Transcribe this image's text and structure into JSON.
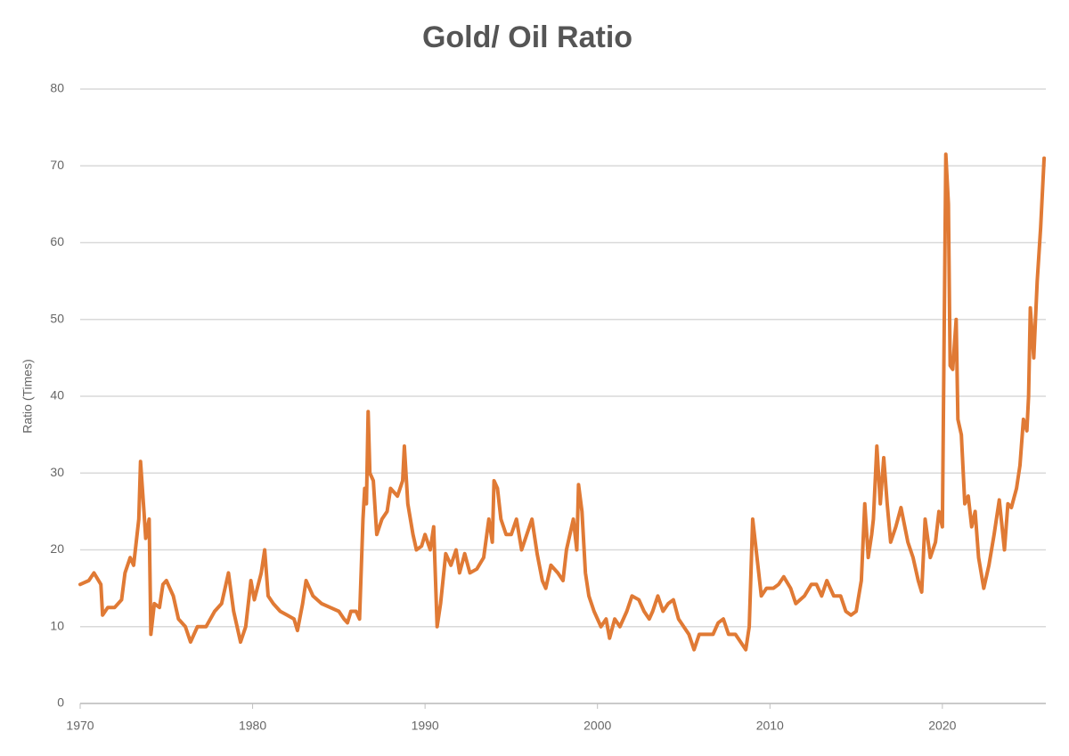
{
  "chart_data": {
    "type": "line",
    "title": "Gold/ Oil Ratio",
    "ylabel": "Ratio (Times)",
    "x": [
      1970,
      1970.5,
      1970.8,
      1971.2,
      1971.3,
      1971.6,
      1972,
      1972.4,
      1972.6,
      1972.9,
      1973.1,
      1973.4,
      1973.5,
      1973.7,
      1973.8,
      1974.0,
      1974.1,
      1974.3,
      1974.6,
      1974.8,
      1975.0,
      1975.4,
      1975.7,
      1976.1,
      1976.4,
      1976.8,
      1977.3,
      1977.8,
      1978.2,
      1978.6,
      1978.9,
      1979.3,
      1979.6,
      1979.9,
      1980.1,
      1980.5,
      1980.7,
      1980.9,
      1981.2,
      1981.6,
      1982.0,
      1982.4,
      1982.6,
      1982.9,
      1983.1,
      1983.5,
      1984.0,
      1984.5,
      1985.0,
      1985.3,
      1985.5,
      1985.7,
      1986.0,
      1986.2,
      1986.4,
      1986.5,
      1986.6,
      1986.7,
      1986.8,
      1987.0,
      1987.2,
      1987.5,
      1987.8,
      1988.0,
      1988.4,
      1988.7,
      1988.8,
      1989.0,
      1989.3,
      1989.5,
      1989.8,
      1990.0,
      1990.3,
      1990.5,
      1990.7,
      1990.9,
      1991.2,
      1991.5,
      1991.8,
      1992.0,
      1992.3,
      1992.6,
      1993.0,
      1993.4,
      1993.7,
      1993.9,
      1994.0,
      1994.2,
      1994.4,
      1994.7,
      1995.0,
      1995.3,
      1995.6,
      1995.9,
      1996.2,
      1996.5,
      1996.8,
      1997.0,
      1997.3,
      1997.7,
      1998.0,
      1998.2,
      1998.4,
      1998.6,
      1998.8,
      1998.9,
      1999.1,
      1999.3,
      1999.5,
      1999.8,
      2000.2,
      2000.5,
      2000.7,
      2001.0,
      2001.3,
      2001.7,
      2002.0,
      2002.4,
      2002.7,
      2003.0,
      2003.2,
      2003.5,
      2003.8,
      2004.1,
      2004.4,
      2004.7,
      2005.0,
      2005.3,
      2005.6,
      2005.9,
      2006.3,
      2006.7,
      2007.0,
      2007.3,
      2007.6,
      2008.0,
      2008.3,
      2008.6,
      2008.8,
      2009.0,
      2009.2,
      2009.5,
      2009.8,
      2010.2,
      2010.5,
      2010.8,
      2011.2,
      2011.5,
      2012.0,
      2012.4,
      2012.7,
      2013.0,
      2013.3,
      2013.7,
      2014.1,
      2014.4,
      2014.7,
      2015.0,
      2015.3,
      2015.5,
      2015.7,
      2015.9,
      2016.0,
      2016.2,
      2016.4,
      2016.6,
      2016.8,
      2017.0,
      2017.3,
      2017.6,
      2018.0,
      2018.3,
      2018.6,
      2018.8,
      2019.0,
      2019.3,
      2019.6,
      2019.8,
      2020.0,
      2020.2,
      2020.35,
      2020.45,
      2020.6,
      2020.8,
      2020.9,
      2021.1,
      2021.3,
      2021.5,
      2021.7,
      2021.9,
      2022.1,
      2022.4,
      2022.7,
      2023.0,
      2023.3,
      2023.6,
      2023.8,
      2024.0,
      2024.3,
      2024.5,
      2024.7,
      2024.9,
      2025.0,
      2025.1,
      2025.3,
      2025.5,
      2025.7,
      2025.9
    ],
    "values": [
      15.5,
      16,
      17,
      15.5,
      11.5,
      12.5,
      12.5,
      13.5,
      17,
      19,
      18,
      24,
      31.5,
      25,
      21.5,
      24,
      9,
      13,
      12.5,
      15.5,
      16,
      14,
      11,
      10,
      8,
      10,
      10,
      12,
      13,
      17,
      12,
      8,
      10,
      16,
      13.5,
      17,
      20,
      14,
      13,
      12,
      11.5,
      11,
      9.5,
      13,
      16,
      14,
      13,
      12.5,
      12,
      11,
      10.5,
      12,
      12,
      11,
      24,
      28,
      26,
      38,
      30,
      29,
      22,
      24,
      25,
      28,
      27,
      29,
      33.5,
      26,
      22,
      20,
      20.5,
      22,
      20,
      23,
      10,
      13,
      19.5,
      18,
      20,
      17,
      19.5,
      17,
      17.5,
      19,
      24,
      21,
      29,
      28,
      24,
      22,
      22,
      24,
      20,
      22,
      24,
      19.5,
      16,
      15,
      18,
      17,
      16,
      20,
      22,
      24,
      20,
      28.5,
      25,
      17,
      14,
      12,
      10,
      11,
      8.5,
      11,
      10,
      12,
      14,
      13.5,
      12,
      11,
      12,
      14,
      12,
      13,
      13.5,
      11,
      10,
      9,
      7,
      9,
      9,
      9,
      10.5,
      11,
      9,
      9,
      8,
      7,
      10,
      24,
      20,
      14,
      15,
      15,
      15.5,
      16.5,
      15,
      13,
      14,
      15.5,
      15.5,
      14,
      16,
      14,
      14,
      12,
      11.5,
      12,
      16,
      26,
      19,
      22,
      24,
      33.5,
      26,
      32,
      26,
      21,
      23,
      25.5,
      21,
      19,
      16,
      14.5,
      24,
      19,
      21,
      25,
      23,
      71.5,
      65,
      44,
      43.5,
      50,
      37,
      35,
      26,
      27,
      23,
      25,
      19,
      15,
      18,
      22,
      26.5,
      20,
      26,
      25.5,
      28,
      31,
      37,
      35.5,
      40,
      51.5,
      45,
      55,
      62,
      71
    ],
    "color": "#e07a35",
    "xlim": [
      1970,
      2026
    ],
    "xticks": [
      1970,
      1980,
      1990,
      2000,
      2010,
      2020
    ],
    "ylim": [
      0,
      80
    ],
    "yticks": [
      0,
      10,
      20,
      30,
      40,
      50,
      60,
      70,
      80
    ],
    "grid": true
  }
}
